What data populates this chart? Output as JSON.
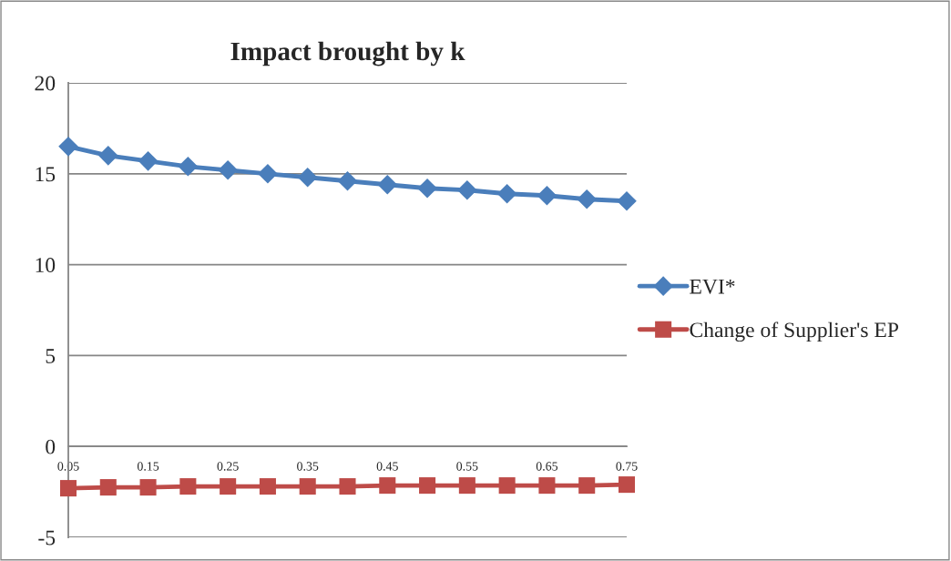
{
  "chart_data": {
    "type": "line",
    "title": "Impact brought by k",
    "categories": [
      "0.05",
      null,
      "0.15",
      null,
      "0.25",
      null,
      "0.35",
      null,
      "0.45",
      null,
      "0.55",
      null,
      "0.65",
      null,
      "0.75"
    ],
    "series": [
      {
        "name": "EVI*",
        "color": "#4a7ebb",
        "marker": "diamond",
        "values": [
          16.5,
          16.0,
          15.7,
          15.4,
          15.2,
          15.0,
          14.8,
          14.6,
          14.4,
          14.2,
          14.1,
          13.9,
          13.8,
          13.6,
          13.5
        ]
      },
      {
        "name": "Change of Supplier's EP",
        "color": "#be4b48",
        "marker": "square",
        "values": [
          -2.3,
          -2.25,
          -2.25,
          -2.2,
          -2.2,
          -2.2,
          -2.2,
          -2.2,
          -2.15,
          -2.15,
          -2.15,
          -2.15,
          -2.15,
          -2.15,
          -2.1
        ]
      }
    ],
    "ylim": [
      -5,
      20
    ],
    "yticks": [
      -5,
      0,
      5,
      10,
      15,
      20
    ],
    "grid": "y",
    "legend": "right",
    "line_style": "solid"
  }
}
